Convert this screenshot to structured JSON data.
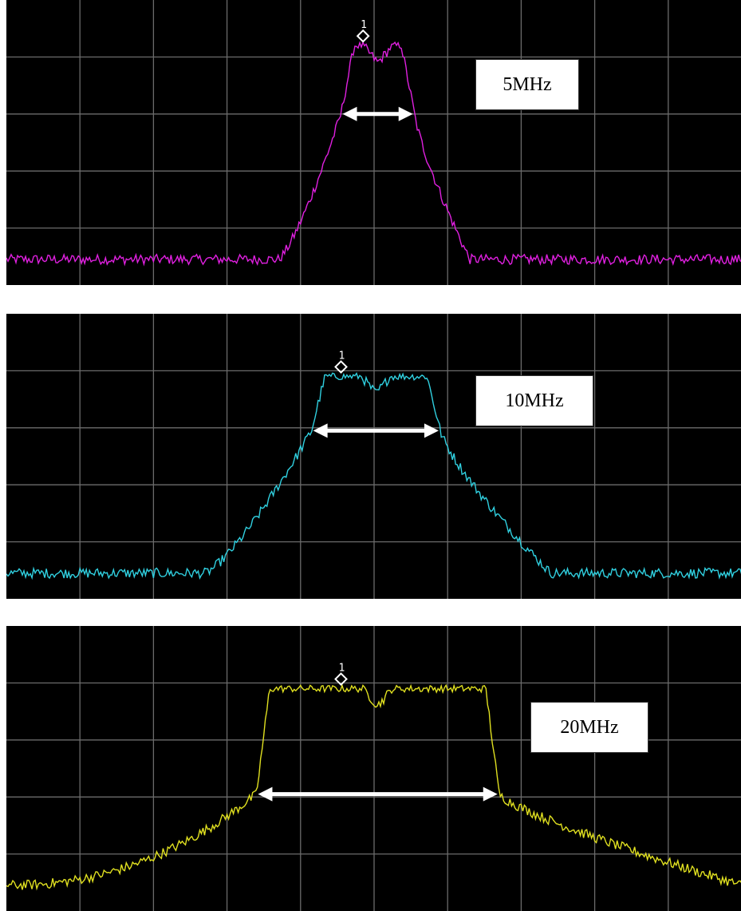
{
  "chart_data": [
    {
      "type": "line",
      "series": [
        {
          "values_note": "",
          "color": "#e020e0"
        }
      ],
      "bandwidth_label": "5MHz",
      "marker_label": "1",
      "trace_color": "#e020e0",
      "x_range": [
        0,
        1
      ],
      "y_range": [
        0,
        1
      ],
      "grid": true,
      "x_divisions": 10,
      "y_divisions": 5,
      "profile": {
        "left_skirt_start": 0.37,
        "left_edge": 0.455,
        "right_edge": 0.555,
        "right_skirt_end": 0.63,
        "top": 0.84,
        "floor": 0.09,
        "shoulder": 0.6,
        "marker_x": 0.485
      }
    },
    {
      "type": "line",
      "series": [
        {
          "values_note": "",
          "color": "#30d0e0"
        }
      ],
      "bandwidth_label": "10MHz",
      "marker_label": "1",
      "trace_color": "#30d0e0",
      "x_range": [
        0,
        1
      ],
      "y_range": [
        0,
        1
      ],
      "grid": true,
      "x_divisions": 10,
      "y_divisions": 5,
      "profile": {
        "left_skirt_start": 0.27,
        "left_edge": 0.415,
        "right_edge": 0.59,
        "right_skirt_end": 0.74,
        "top": 0.78,
        "floor": 0.09,
        "shoulder": 0.59,
        "marker_x": 0.455
      }
    },
    {
      "type": "line",
      "series": [
        {
          "values_note": "",
          "color": "#e0e020"
        }
      ],
      "bandwidth_label": "20MHz",
      "marker_label": "1",
      "trace_color": "#e0e020",
      "x_range": [
        0,
        1
      ],
      "y_range": [
        0,
        1
      ],
      "grid": true,
      "x_divisions": 10,
      "y_divisions": 5,
      "profile": {
        "left_skirt_start": 0.0,
        "left_edge": 0.34,
        "right_edge": 0.67,
        "right_skirt_end": 1.0,
        "top": 0.78,
        "floor": 0.09,
        "shoulder": 0.41,
        "marker_x": 0.455
      }
    }
  ]
}
